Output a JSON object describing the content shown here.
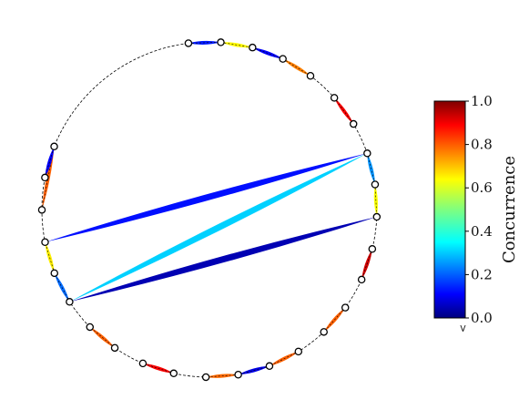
{
  "chart_data": {
    "type": "chord",
    "circle": {
      "node_count": 28,
      "boundary": "dashed"
    },
    "nodes_angles_deg": [
      97.2,
      86.1,
      75.1,
      64.0,
      52.9,
      41.8,
      30.7,
      19.6,
      8.6,
      -2.5,
      -13.6,
      -24.7,
      -35.8,
      -46.9,
      -57.9,
      -69.0,
      -80.1,
      -91.2,
      -102.3,
      -113.4,
      -124.4,
      -135.5,
      -146.6,
      -157.7,
      -168.8,
      -179.9,
      169.0,
      157.9
    ],
    "links": [
      {
        "from": 0,
        "to": 1,
        "value": 0.15
      },
      {
        "from": 1,
        "to": 2,
        "value": 0.63
      },
      {
        "from": 2,
        "to": 3,
        "value": 0.12
      },
      {
        "from": 3,
        "to": 4,
        "value": 0.75
      },
      {
        "from": 5,
        "to": 6,
        "value": 0.88
      },
      {
        "from": 7,
        "to": 8,
        "value": 0.27
      },
      {
        "from": 8,
        "to": 9,
        "value": 0.62
      },
      {
        "from": 10,
        "to": 11,
        "value": 0.92
      },
      {
        "from": 12,
        "to": 13,
        "value": 0.78
      },
      {
        "from": 14,
        "to": 15,
        "value": 0.78
      },
      {
        "from": 15,
        "to": 16,
        "value": 0.1
      },
      {
        "from": 16,
        "to": 17,
        "value": 0.77
      },
      {
        "from": 18,
        "to": 19,
        "value": 0.88
      },
      {
        "from": 20,
        "to": 21,
        "value": 0.78
      },
      {
        "from": 22,
        "to": 23,
        "value": 0.23
      },
      {
        "from": 23,
        "to": 24,
        "value": 0.64
      },
      {
        "from": 25,
        "to": 27,
        "value": 0.78
      },
      {
        "from": 26,
        "to": 27,
        "value": 0.12
      },
      {
        "from": 7,
        "to": 24,
        "value": 0.14
      },
      {
        "from": 7,
        "to": 22,
        "value": 0.33
      },
      {
        "from": 9,
        "to": 22,
        "value": 0.05
      }
    ],
    "colorbar": {
      "label": "Concurrence",
      "ticks": [
        "0.0",
        "0.2",
        "0.4",
        "0.6",
        "0.8",
        "1.0"
      ],
      "range": [
        0,
        1
      ],
      "extend_min_marker": "<",
      "colormap": "jet"
    }
  }
}
